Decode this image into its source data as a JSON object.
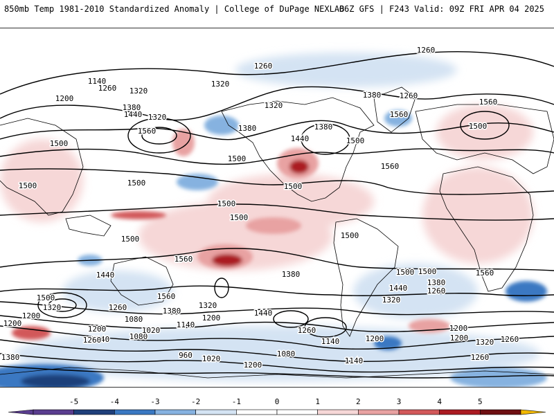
{
  "header": {
    "title_left": "850mb Temp 1981-2010 Standardized Anomaly | College of DuPage NEXLAB",
    "title_right": "06Z GFS | F243 Valid: 09Z FRI APR 04 2025"
  },
  "colors": {
    "neg5": "#5a3d8f",
    "neg4": "#1f3f7a",
    "neg3": "#3a78c2",
    "neg2": "#86b2e0",
    "neg1": "#d4e3f3",
    "zero": "#ffffff",
    "pos1": "#f6d7d7",
    "pos2": "#e8a2a2",
    "pos3": "#d2585a",
    "pos4": "#ab1b22",
    "pos5": "#6e0f12",
    "pos_extreme": "#f2b800"
  },
  "colorbar": {
    "ticks": [
      "-5",
      "-4",
      "-3",
      "-2",
      "-1",
      "0",
      "1",
      "2",
      "3",
      "4",
      "5"
    ]
  },
  "contour_labels": [
    "1260",
    "1260",
    "1140",
    "1260",
    "1200",
    "1320",
    "1320",
    "1380",
    "1440",
    "1320",
    "1560",
    "1380",
    "1320",
    "1380",
    "1260",
    "1380",
    "1560",
    "1560",
    "1500",
    "1500",
    "1440",
    "1500",
    "1500",
    "1500",
    "1560",
    "1500",
    "1500",
    "1500",
    "1500",
    "1500",
    "1500",
    "1560",
    "1440",
    "1560",
    "1500",
    "1380",
    "1440",
    "1380",
    "1500",
    "1560",
    "1320",
    "1260",
    "1500",
    "1320",
    "1380",
    "1320",
    "1200",
    "1260",
    "1080",
    "1440",
    "1200",
    "1080",
    "1140",
    "1200",
    "1140",
    "1200",
    "1260",
    "1020",
    "1260",
    "1200",
    "1020",
    "960",
    "1080",
    "1140",
    "1140",
    "1200",
    "1200",
    "1320",
    "1260",
    "1260",
    "1200",
    "1020",
    "1380"
  ]
}
